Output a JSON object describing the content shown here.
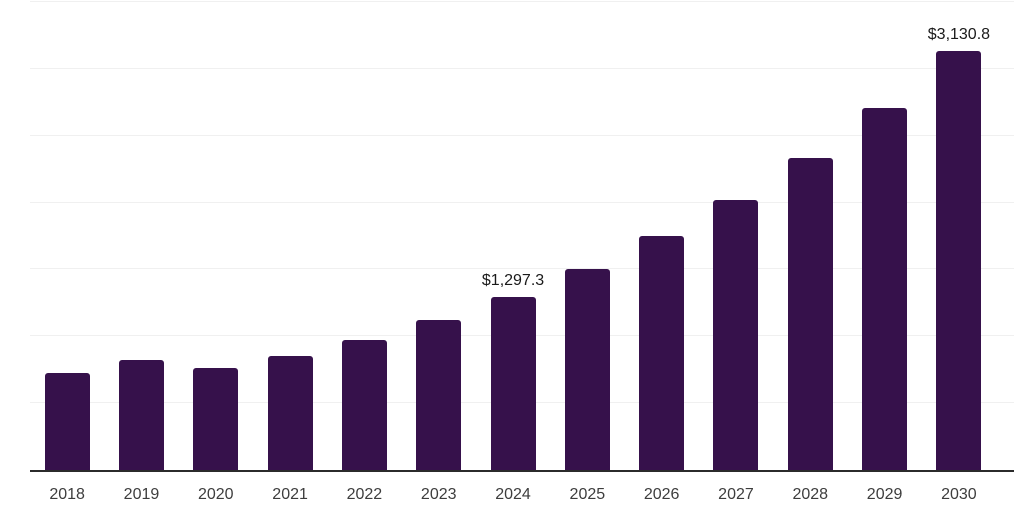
{
  "chart_data": {
    "type": "bar",
    "title": "",
    "xlabel": "",
    "ylabel": "",
    "categories": [
      "2018",
      "2019",
      "2020",
      "2021",
      "2022",
      "2023",
      "2024",
      "2025",
      "2026",
      "2027",
      "2028",
      "2029",
      "2030"
    ],
    "values": [
      722,
      823,
      763,
      853,
      973,
      1123,
      1297.3,
      1501,
      1752,
      2021,
      2333,
      2707,
      3130.8
    ],
    "data_labels": [
      null,
      null,
      null,
      null,
      null,
      null,
      "$1,297.3",
      null,
      null,
      null,
      null,
      null,
      "$3,130.8"
    ],
    "ylim": [
      0,
      3500
    ],
    "gridline_step": 500,
    "grid": "horizontal",
    "y_tick_labels_visible": false,
    "legend_position": "none",
    "colors": {
      "bar": "#36114b",
      "gridline": "#f0f0f0",
      "axis_line": "#2b2b2b",
      "tick_label": "#3d3d3d",
      "data_label": "#1a1a1a",
      "background": "#ffffff"
    }
  }
}
